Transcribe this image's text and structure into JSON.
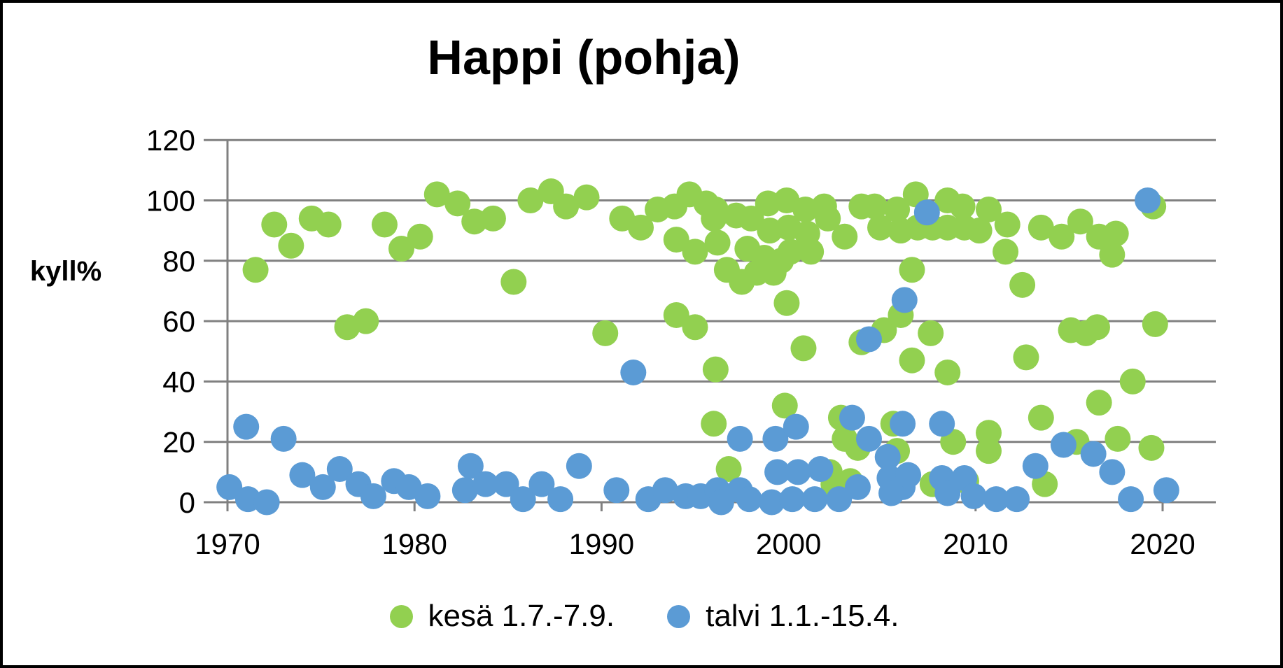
{
  "title": "Happi (pohja)",
  "y_axis": {
    "label": "kyll%"
  },
  "legend": [
    {
      "label": "kesä 1.7.-7.9.",
      "color": "#92D050"
    },
    {
      "label": "talvi 1.1.-15.4.",
      "color": "#5B9BD5"
    }
  ],
  "colors": {
    "grid": "#808080",
    "axis": "#808080",
    "text": "#000000"
  },
  "chart_data": {
    "type": "scatter",
    "title": "Happi (pohja)",
    "xlabel": "",
    "ylabel": "kyll%",
    "xlim": [
      1969.9,
      2022.8
    ],
    "ylim": [
      0,
      120
    ],
    "grid": true,
    "legend_position": "bottom",
    "x_ticks": [
      1970,
      1980,
      1990,
      2000,
      2010,
      2020
    ],
    "y_ticks": [
      0,
      20,
      40,
      60,
      80,
      100,
      120
    ],
    "series": [
      {
        "name": "kesä 1.7.-7.9.",
        "color": "#92D050",
        "points": [
          [
            1971.5,
            77
          ],
          [
            1972.5,
            92
          ],
          [
            1973.4,
            85
          ],
          [
            1974.5,
            94
          ],
          [
            1975.4,
            92
          ],
          [
            1976.4,
            58
          ],
          [
            1977.4,
            60
          ],
          [
            1978.4,
            92
          ],
          [
            1979.3,
            84
          ],
          [
            1980.3,
            88
          ],
          [
            1981.2,
            102
          ],
          [
            1982.3,
            99
          ],
          [
            1983.2,
            93
          ],
          [
            1984.2,
            94
          ],
          [
            1985.3,
            73
          ],
          [
            1986.2,
            100
          ],
          [
            1987.3,
            103
          ],
          [
            1988.1,
            98
          ],
          [
            1989.2,
            101
          ],
          [
            1990.2,
            56
          ],
          [
            1991.1,
            94
          ],
          [
            1992.1,
            91
          ],
          [
            1993.0,
            97
          ],
          [
            1993.9,
            98
          ],
          [
            1994.0,
            87
          ],
          [
            1994.0,
            62
          ],
          [
            1994.7,
            102
          ],
          [
            1995.0,
            83
          ],
          [
            1995.0,
            58
          ],
          [
            1995.6,
            99
          ],
          [
            1996.0,
            94
          ],
          [
            1996.2,
            86
          ],
          [
            1996.1,
            97
          ],
          [
            1996.1,
            44
          ],
          [
            1996.0,
            26
          ],
          [
            1996.8,
            11
          ],
          [
            1996.7,
            77
          ],
          [
            1997.2,
            95
          ],
          [
            1997.5,
            73
          ],
          [
            1997.8,
            84
          ],
          [
            1998.0,
            94
          ],
          [
            1998.3,
            76
          ],
          [
            1998.7,
            81
          ],
          [
            1998.9,
            99
          ],
          [
            1999.0,
            90
          ],
          [
            1999.2,
            76
          ],
          [
            1999.6,
            80
          ],
          [
            1999.8,
            32
          ],
          [
            1999.9,
            100
          ],
          [
            1999.9,
            66
          ],
          [
            2000.0,
            91
          ],
          [
            2000.1,
            83
          ],
          [
            2000.8,
            51
          ],
          [
            2000.9,
            97
          ],
          [
            2001.0,
            89
          ],
          [
            2001.2,
            83
          ],
          [
            2001.9,
            98
          ],
          [
            2002.1,
            94
          ],
          [
            2002.2,
            10
          ],
          [
            2002.4,
            6
          ],
          [
            2002.8,
            28
          ],
          [
            2003.0,
            88
          ],
          [
            2003.0,
            21
          ],
          [
            2003.3,
            7
          ],
          [
            2003.7,
            18
          ],
          [
            2003.9,
            98
          ],
          [
            2003.9,
            53
          ],
          [
            2004.6,
            98
          ],
          [
            2004.9,
            91
          ],
          [
            2005.1,
            57
          ],
          [
            2005.6,
            26
          ],
          [
            2005.8,
            97
          ],
          [
            2005.8,
            17
          ],
          [
            2006.0,
            90
          ],
          [
            2006.0,
            62
          ],
          [
            2006.6,
            77
          ],
          [
            2006.6,
            47
          ],
          [
            2006.8,
            102
          ],
          [
            2006.9,
            91
          ],
          [
            2007.6,
            56
          ],
          [
            2007.7,
            91
          ],
          [
            2007.7,
            6
          ],
          [
            2008.5,
            100
          ],
          [
            2008.5,
            91
          ],
          [
            2008.5,
            43
          ],
          [
            2008.8,
            20
          ],
          [
            2009.3,
            98
          ],
          [
            2009.4,
            91
          ],
          [
            2009.5,
            7
          ],
          [
            2010.2,
            90
          ],
          [
            2010.7,
            97
          ],
          [
            2010.7,
            23
          ],
          [
            2010.7,
            17
          ],
          [
            2011.6,
            83
          ],
          [
            2011.7,
            92
          ],
          [
            2012.5,
            72
          ],
          [
            2012.7,
            48
          ],
          [
            2013.5,
            91
          ],
          [
            2013.5,
            28
          ],
          [
            2013.7,
            6
          ],
          [
            2014.6,
            88
          ],
          [
            2015.1,
            57
          ],
          [
            2015.4,
            20
          ],
          [
            2015.6,
            93
          ],
          [
            2015.9,
            56
          ],
          [
            2016.5,
            58
          ],
          [
            2016.6,
            88
          ],
          [
            2016.6,
            33
          ],
          [
            2017.3,
            82
          ],
          [
            2017.5,
            89
          ],
          [
            2017.6,
            21
          ],
          [
            2018.4,
            40
          ],
          [
            2019.4,
            18
          ],
          [
            2019.5,
            98
          ],
          [
            2019.6,
            59
          ]
        ]
      },
      {
        "name": "talvi 1.1.-15.4.",
        "color": "#5B9BD5",
        "points": [
          [
            1970.1,
            5
          ],
          [
            1971.0,
            25
          ],
          [
            1971.1,
            1
          ],
          [
            1972.1,
            0
          ],
          [
            1973.0,
            21
          ],
          [
            1974.0,
            9
          ],
          [
            1975.1,
            5
          ],
          [
            1976.0,
            11
          ],
          [
            1977.0,
            6
          ],
          [
            1977.8,
            2
          ],
          [
            1978.9,
            7
          ],
          [
            1979.7,
            5
          ],
          [
            1980.7,
            2
          ],
          [
            1982.7,
            4
          ],
          [
            1983.0,
            12
          ],
          [
            1983.8,
            6
          ],
          [
            1984.9,
            6
          ],
          [
            1985.8,
            1
          ],
          [
            1986.8,
            6
          ],
          [
            1987.8,
            1
          ],
          [
            1988.8,
            12
          ],
          [
            1990.8,
            4
          ],
          [
            1991.7,
            43
          ],
          [
            1992.5,
            1
          ],
          [
            1993.4,
            4
          ],
          [
            1994.5,
            2
          ],
          [
            1995.3,
            2
          ],
          [
            1996.2,
            4
          ],
          [
            1996.4,
            0
          ],
          [
            1997.4,
            21
          ],
          [
            1997.4,
            4
          ],
          [
            1997.9,
            1
          ],
          [
            1999.1,
            0
          ],
          [
            1999.3,
            21
          ],
          [
            1999.4,
            10
          ],
          [
            2000.2,
            1
          ],
          [
            2000.4,
            25
          ],
          [
            2000.5,
            10
          ],
          [
            2001.4,
            1
          ],
          [
            2001.7,
            11
          ],
          [
            2002.7,
            1
          ],
          [
            2003.4,
            28
          ],
          [
            2003.7,
            5
          ],
          [
            2004.3,
            54
          ],
          [
            2004.3,
            21
          ],
          [
            2005.3,
            15
          ],
          [
            2005.4,
            8
          ],
          [
            2005.5,
            3
          ],
          [
            2006.1,
            26
          ],
          [
            2006.1,
            5
          ],
          [
            2006.2,
            67
          ],
          [
            2006.4,
            9
          ],
          [
            2007.4,
            96
          ],
          [
            2008.2,
            26
          ],
          [
            2008.2,
            8
          ],
          [
            2008.5,
            3
          ],
          [
            2009.4,
            8
          ],
          [
            2009.9,
            2
          ],
          [
            2011.1,
            1
          ],
          [
            2012.2,
            1
          ],
          [
            2013.2,
            12
          ],
          [
            2014.7,
            19
          ],
          [
            2016.3,
            16
          ],
          [
            2017.3,
            10
          ],
          [
            2018.3,
            1
          ],
          [
            2019.2,
            100
          ],
          [
            2020.2,
            4
          ]
        ]
      }
    ]
  }
}
